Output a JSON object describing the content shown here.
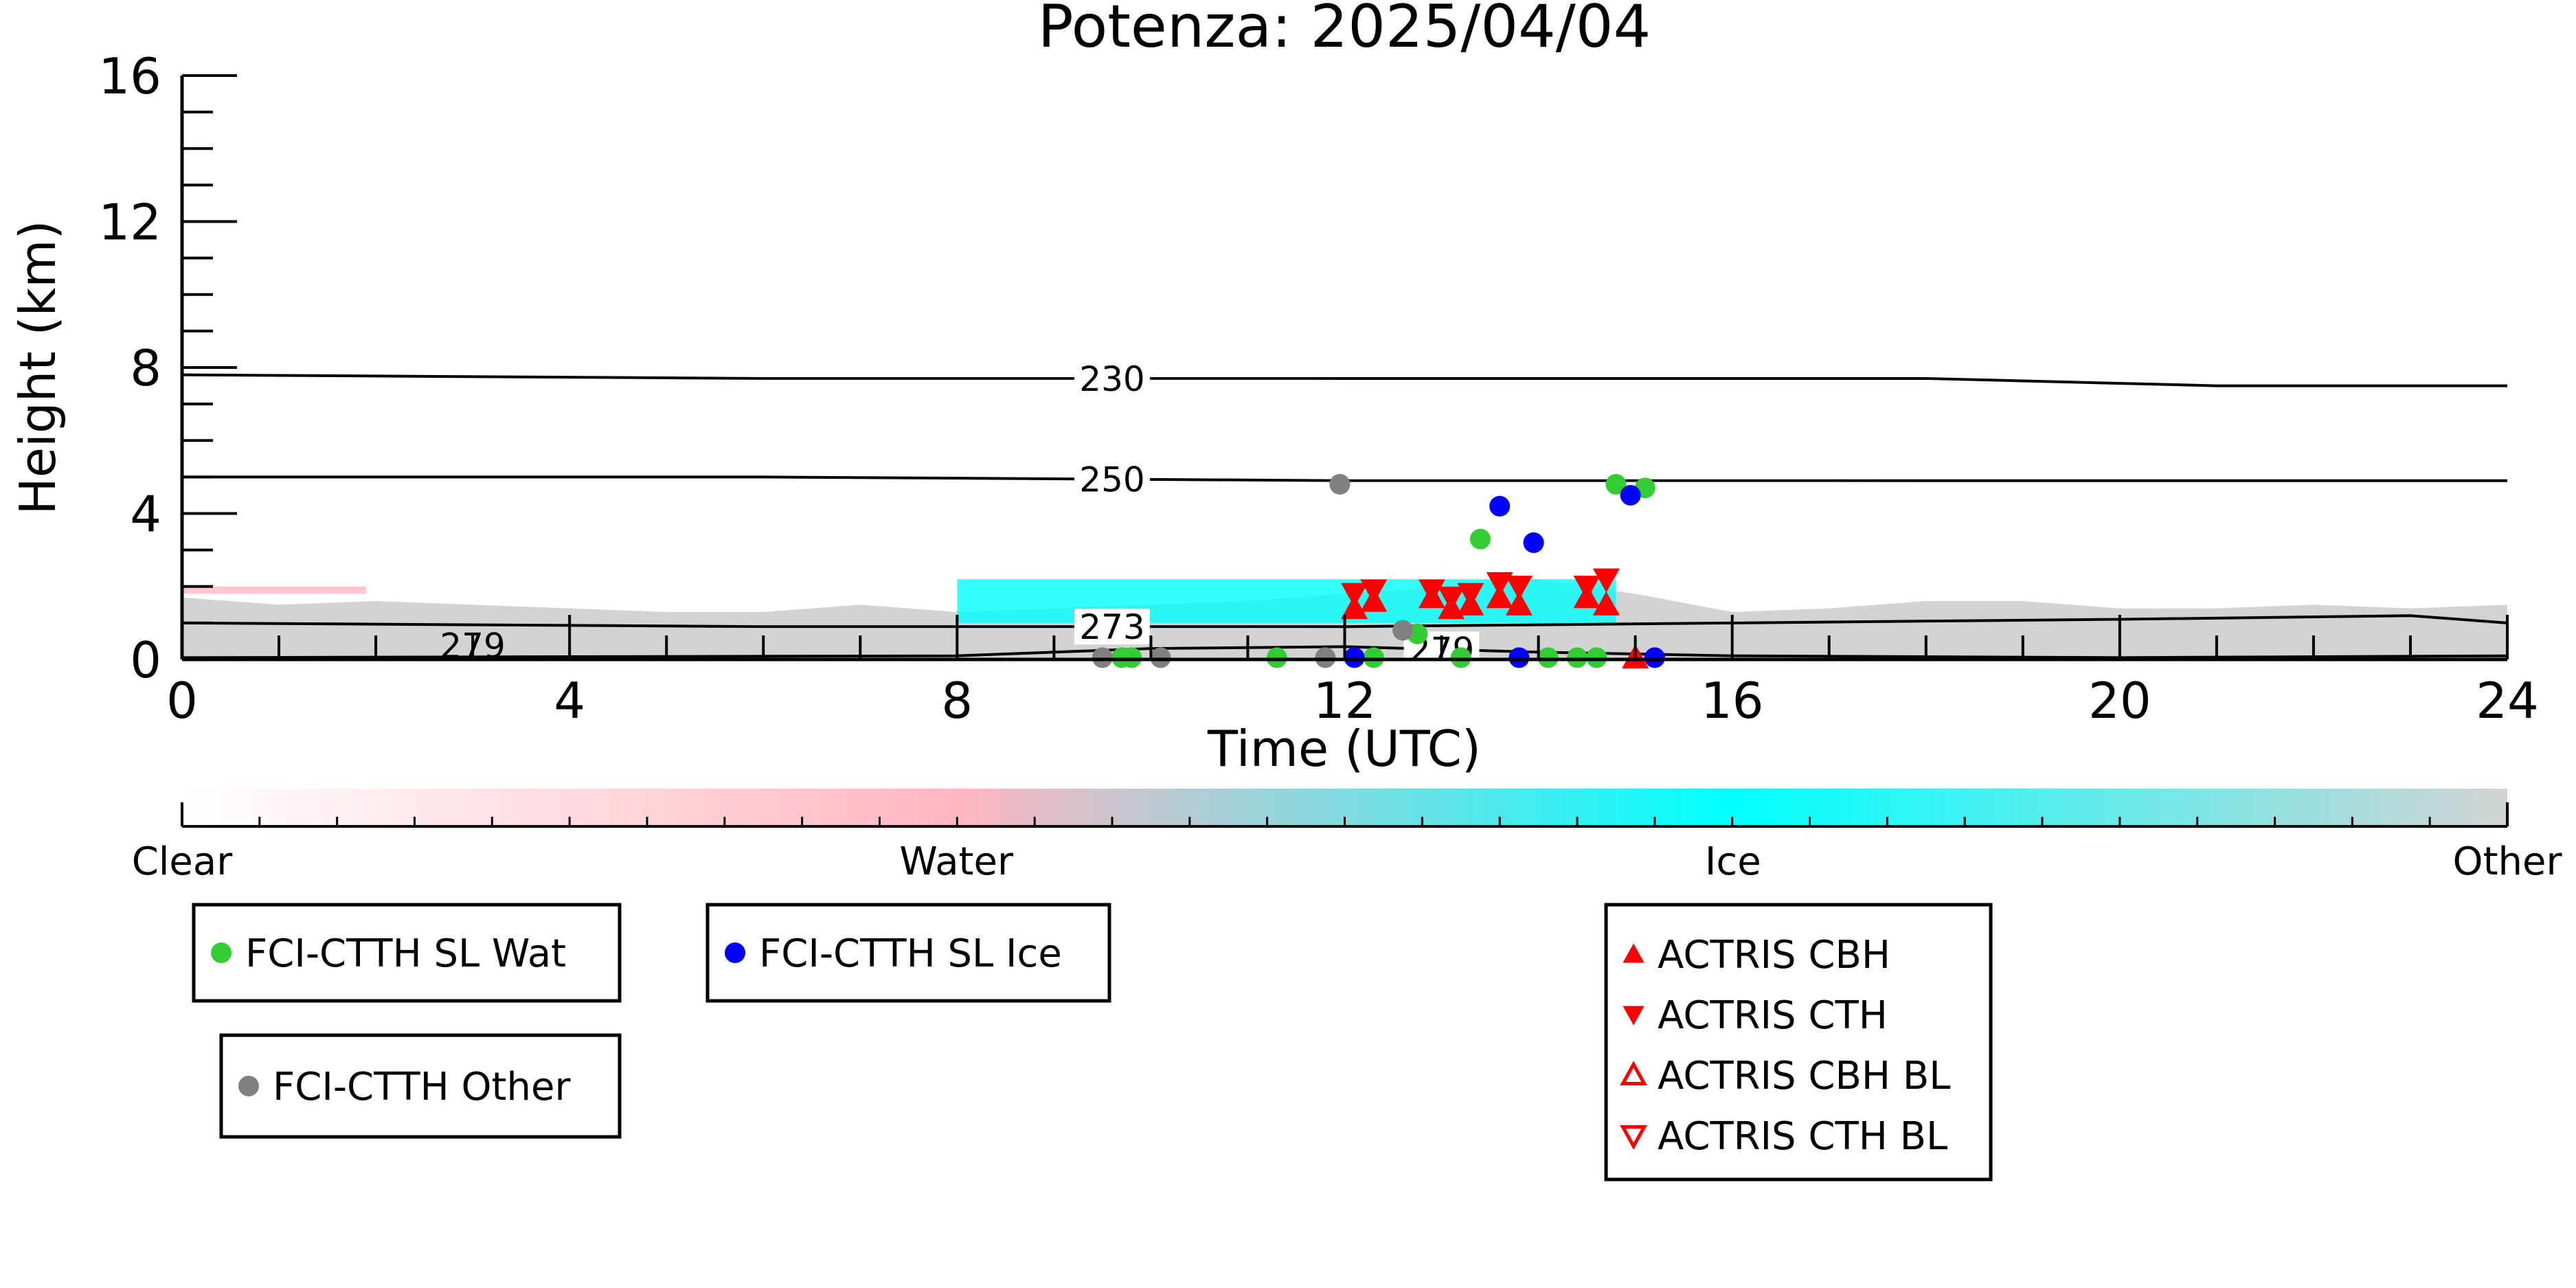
{
  "chart_data": {
    "type": "scatter",
    "title": "Potenza: 2025/04/04",
    "xlabel": "Time (UTC)",
    "ylabel": "Height (km)",
    "xlim": [
      0,
      24
    ],
    "ylim": [
      0,
      16
    ],
    "x_ticks": [
      "0",
      "4",
      "8",
      "12",
      "16",
      "20",
      "24"
    ],
    "y_ticks": [
      "0",
      "4",
      "8",
      "12",
      "16"
    ],
    "grid": false,
    "isotherms": [
      {
        "label": "230",
        "label_x": 9.6,
        "points": [
          [
            0,
            7.8
          ],
          [
            6,
            7.7
          ],
          [
            12,
            7.7
          ],
          [
            18,
            7.7
          ],
          [
            21,
            7.5
          ],
          [
            24,
            7.5
          ]
        ]
      },
      {
        "label": "250",
        "label_x": 9.6,
        "points": [
          [
            0,
            5.0
          ],
          [
            6,
            5.0
          ],
          [
            12,
            4.9
          ],
          [
            18,
            4.9
          ],
          [
            24,
            4.9
          ]
        ]
      },
      {
        "label": "273",
        "label_x": 9.6,
        "points": [
          [
            0,
            1.0
          ],
          [
            6,
            0.9
          ],
          [
            12,
            0.9
          ],
          [
            16,
            1.0
          ],
          [
            20,
            1.1
          ],
          [
            23,
            1.2
          ],
          [
            24,
            1.0
          ]
        ]
      },
      {
        "label": "279",
        "label_x": 13.0,
        "points": [
          [
            0,
            0.05
          ],
          [
            8,
            0.1
          ],
          [
            10,
            0.3
          ],
          [
            12,
            0.35
          ],
          [
            14,
            0.2
          ],
          [
            16,
            0.1
          ],
          [
            20,
            0.05
          ],
          [
            24,
            0.1
          ]
        ]
      },
      {
        "label": "279",
        "label_x": 3.0,
        "points": []
      }
    ],
    "series": [
      {
        "name": "FCI-CTTH SL Wat",
        "marker": "circle",
        "color": "#32cd32",
        "points": [
          [
            13.4,
            3.3
          ],
          [
            14.8,
            4.8
          ],
          [
            15.1,
            4.7
          ],
          [
            12.75,
            0.7
          ],
          [
            9.7,
            0.05
          ],
          [
            9.8,
            0.05
          ],
          [
            11.3,
            0.05
          ],
          [
            12.3,
            0.05
          ],
          [
            13.2,
            0.05
          ],
          [
            14.1,
            0.05
          ],
          [
            14.4,
            0.05
          ],
          [
            14.6,
            0.05
          ]
        ]
      },
      {
        "name": "FCI-CTTH SL Ice",
        "marker": "circle",
        "color": "#0000ff",
        "points": [
          [
            13.6,
            4.2
          ],
          [
            13.95,
            3.2
          ],
          [
            14.95,
            4.5
          ],
          [
            12.1,
            0.05
          ],
          [
            13.8,
            0.05
          ],
          [
            15.2,
            0.05
          ]
        ]
      },
      {
        "name": "FCI-CTTH Other",
        "marker": "circle",
        "color": "#808080",
        "points": [
          [
            11.95,
            4.8
          ],
          [
            12.6,
            0.8
          ],
          [
            9.5,
            0.05
          ],
          [
            10.1,
            0.05
          ],
          [
            11.8,
            0.05
          ]
        ]
      },
      {
        "name": "ACTRIS CBH",
        "marker": "triangle-up",
        "color": "#ff0000",
        "points": [
          [
            12.1,
            1.4
          ],
          [
            12.3,
            1.6
          ],
          [
            12.9,
            1.7
          ],
          [
            13.1,
            1.4
          ],
          [
            13.3,
            1.5
          ],
          [
            13.6,
            1.7
          ],
          [
            13.8,
            1.5
          ],
          [
            14.5,
            1.7
          ],
          [
            14.7,
            1.5
          ],
          [
            15.0,
            0.05
          ]
        ]
      },
      {
        "name": "ACTRIS CTH",
        "marker": "triangle-down",
        "color": "#ff0000",
        "points": [
          [
            12.1,
            1.8
          ],
          [
            12.3,
            1.9
          ],
          [
            12.9,
            1.9
          ],
          [
            13.1,
            1.7
          ],
          [
            13.3,
            1.8
          ],
          [
            13.6,
            2.1
          ],
          [
            13.8,
            2.0
          ],
          [
            14.5,
            2.0
          ],
          [
            14.7,
            2.2
          ]
        ]
      },
      {
        "name": "ACTRIS CBH BL",
        "marker": "triangle-up-open",
        "color": "#ff0000",
        "points": []
      },
      {
        "name": "ACTRIS CTH BL",
        "marker": "triangle-down-open",
        "color": "#ff0000",
        "points": []
      }
    ],
    "classification_layers": [
      {
        "class": "Other",
        "color": "#d3d3d3",
        "x_start": 0,
        "x_end": 24,
        "profile": [
          [
            0,
            1.7
          ],
          [
            1,
            1.5
          ],
          [
            2,
            1.6
          ],
          [
            3,
            1.5
          ],
          [
            4,
            1.4
          ],
          [
            5,
            1.3
          ],
          [
            6,
            1.3
          ],
          [
            7,
            1.5
          ],
          [
            8,
            1.3
          ],
          [
            9,
            1.4
          ],
          [
            10,
            1.5
          ],
          [
            11,
            1.6
          ],
          [
            12,
            1.8
          ],
          [
            13,
            2.0
          ],
          [
            14,
            2.2
          ],
          [
            15,
            1.8
          ],
          [
            16,
            1.3
          ],
          [
            17,
            1.4
          ],
          [
            18,
            1.6
          ],
          [
            19,
            1.6
          ],
          [
            20,
            1.4
          ],
          [
            21,
            1.4
          ],
          [
            22,
            1.5
          ],
          [
            23,
            1.4
          ],
          [
            24,
            1.5
          ]
        ]
      },
      {
        "class": "Water",
        "color": "#ffb6c1",
        "x_start": 0,
        "x_end": 1.9,
        "y_low": 1.8,
        "y_high": 2.0
      },
      {
        "class": "Ice",
        "color": "#00ffff",
        "x_start": 8.0,
        "x_end": 14.8,
        "y_low": 1.0,
        "y_high": 2.2
      }
    ],
    "colorbar": {
      "labels": [
        "Clear",
        "Water",
        "Ice",
        "Other"
      ],
      "colors": [
        "#ffffff",
        "#ffb6c1",
        "#00ffff",
        "#d3d3d3"
      ],
      "positions": [
        0,
        0.333,
        0.667,
        1.0
      ]
    },
    "legend": [
      {
        "label": "FCI-CTTH SL Wat",
        "marker": "circle",
        "color": "#32cd32"
      },
      {
        "label": "FCI-CTTH SL Ice",
        "marker": "circle",
        "color": "#0000ff"
      },
      {
        "label": "FCI-CTTH Other",
        "marker": "circle",
        "color": "#808080"
      },
      {
        "label": "ACTRIS CBH",
        "marker": "triangle-up",
        "color": "#ff0000"
      },
      {
        "label": "ACTRIS CTH",
        "marker": "triangle-down",
        "color": "#ff0000"
      },
      {
        "label": "ACTRIS CBH BL",
        "marker": "triangle-up-open",
        "color": "#ff0000"
      },
      {
        "label": "ACTRIS CTH BL",
        "marker": "triangle-down-open",
        "color": "#ff0000"
      }
    ]
  }
}
